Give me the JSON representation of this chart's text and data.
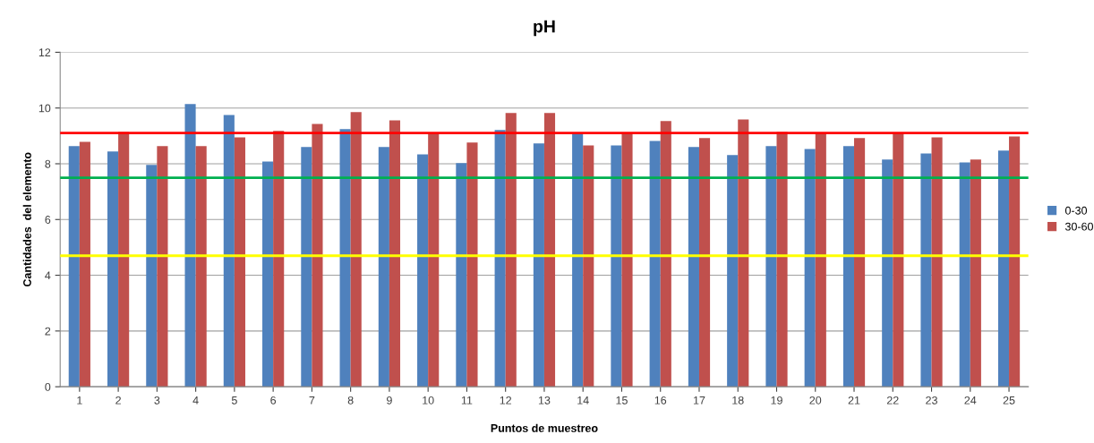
{
  "chart_data": {
    "type": "bar",
    "title": "pH",
    "xlabel": "Puntos de muestreo",
    "ylabel": "Cantidades  del elemento",
    "categories": [
      "1",
      "2",
      "3",
      "4",
      "5",
      "6",
      "7",
      "8",
      "9",
      "10",
      "11",
      "12",
      "13",
      "14",
      "15",
      "16",
      "17",
      "18",
      "19",
      "20",
      "21",
      "22",
      "23",
      "24",
      "25"
    ],
    "series": [
      {
        "name": "0-30",
        "color": "#4f81bd",
        "values": [
          8.63,
          8.44,
          7.96,
          10.14,
          9.75,
          8.08,
          8.6,
          9.24,
          8.6,
          8.34,
          8.02,
          9.21,
          8.73,
          9.11,
          8.66,
          8.82,
          8.6,
          8.31,
          8.63,
          8.53,
          8.63,
          8.15,
          8.37,
          8.05,
          8.47
        ]
      },
      {
        "name": "30-60",
        "color": "#c0504d",
        "values": [
          8.79,
          9.14,
          8.63,
          8.63,
          8.95,
          9.18,
          9.43,
          9.85,
          9.56,
          9.11,
          8.76,
          9.82,
          9.82,
          8.66,
          9.11,
          9.53,
          8.92,
          9.59,
          9.14,
          9.11,
          8.92,
          9.08,
          8.95,
          8.15,
          8.98
        ]
      }
    ],
    "ylim": [
      0,
      12
    ],
    "yticks": [
      0,
      2,
      4,
      6,
      8,
      10,
      12
    ],
    "grid": "y",
    "legend": "right",
    "ref_lines": [
      {
        "axis": "y",
        "value": 9.1,
        "color": "#ff0000"
      },
      {
        "axis": "y",
        "value": 7.5,
        "color": "#00b050"
      },
      {
        "axis": "y",
        "value": 4.7,
        "color": "#ffff00"
      }
    ]
  }
}
